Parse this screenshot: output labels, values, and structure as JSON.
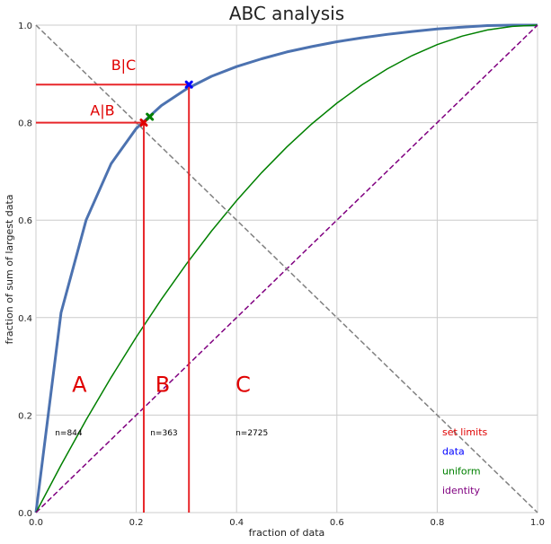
{
  "chart_data": {
    "type": "line",
    "title": "ABC analysis",
    "xlabel": "fraction of data",
    "ylabel": "fraction of sum of largest data",
    "xlim": [
      0,
      1
    ],
    "ylim": [
      0,
      1
    ],
    "grid": true,
    "x_ticks": [
      "0.0",
      "0.2",
      "0.4",
      "0.6",
      "0.8",
      "1.0"
    ],
    "y_ticks": [
      "0.0",
      "0.2",
      "0.4",
      "0.6",
      "0.8",
      "1.0"
    ],
    "series": [
      {
        "color": "#4c72b0",
        "style": "solid-thick",
        "x": [
          0,
          0.05,
          0.1,
          0.15,
          0.2,
          0.25,
          0.3,
          0.35,
          0.4,
          0.45,
          0.5,
          0.55,
          0.6,
          0.65,
          0.7,
          0.75,
          0.8,
          0.85,
          0.9,
          0.95,
          1.0
        ],
        "y": [
          0,
          0.41,
          0.6,
          0.716,
          0.788,
          0.835,
          0.869,
          0.895,
          0.915,
          0.931,
          0.945,
          0.956,
          0.966,
          0.974,
          0.981,
          0.987,
          0.992,
          0.996,
          0.999,
          1.0,
          1.0
        ]
      },
      {
        "color": "#008000",
        "style": "solid",
        "x": [
          0,
          0.05,
          0.1,
          0.15,
          0.2,
          0.25,
          0.3,
          0.35,
          0.4,
          0.45,
          0.5,
          0.55,
          0.6,
          0.65,
          0.7,
          0.75,
          0.8,
          0.85,
          0.9,
          0.95,
          1.0
        ],
        "y": [
          0,
          0.0975,
          0.19,
          0.2775,
          0.36,
          0.4375,
          0.51,
          0.5775,
          0.64,
          0.6975,
          0.75,
          0.7975,
          0.84,
          0.8775,
          0.91,
          0.9375,
          0.96,
          0.9775,
          0.99,
          0.9975,
          1.0
        ]
      },
      {
        "color": "#800080",
        "style": "dashed",
        "x": [
          0,
          1
        ],
        "y": [
          0,
          1
        ]
      },
      {
        "color": "#808080",
        "style": "dashed",
        "x": [
          0,
          1
        ],
        "y": [
          1,
          0
        ]
      }
    ],
    "markers": [
      {
        "x": 0.215,
        "y": 0.8,
        "color": "#e00000"
      },
      {
        "x": 0.305,
        "y": 0.878,
        "color": "#0000ff"
      },
      {
        "x": 0.227,
        "y": 0.812,
        "color": "#008000"
      }
    ],
    "limits": {
      "color": "#e8262a",
      "AB": {
        "x": 0.215,
        "y": 0.8
      },
      "BC": {
        "x": 0.305,
        "y": 0.878
      }
    },
    "annotations": [
      {
        "text": "B|C",
        "x": 0.15,
        "y": 0.908,
        "size": 16,
        "color": "#e00000"
      },
      {
        "text": "A|B",
        "x": 0.108,
        "y": 0.815,
        "size": 16,
        "color": "#e00000"
      },
      {
        "text": "A",
        "x": 0.072,
        "y": 0.248,
        "size": 24,
        "color": "#e00000"
      },
      {
        "text": "B",
        "x": 0.238,
        "y": 0.248,
        "size": 24,
        "color": "#e00000"
      },
      {
        "text": "C",
        "x": 0.398,
        "y": 0.248,
        "size": 24,
        "color": "#e00000"
      },
      {
        "text": "n=844",
        "x": 0.038,
        "y": 0.158,
        "size": 9,
        "color": "#000000"
      },
      {
        "text": "n=363",
        "x": 0.228,
        "y": 0.158,
        "size": 9,
        "color": "#000000"
      },
      {
        "text": "n=2725",
        "x": 0.398,
        "y": 0.158,
        "size": 9,
        "color": "#000000"
      }
    ],
    "legend": {
      "placement": "bottom-right",
      "entries": [
        {
          "label": "set limits",
          "color": "#e00000"
        },
        {
          "label": "data",
          "color": "#0000ff"
        },
        {
          "label": "uniform",
          "color": "#008000"
        },
        {
          "label": "identity",
          "color": "#800080"
        }
      ]
    }
  }
}
